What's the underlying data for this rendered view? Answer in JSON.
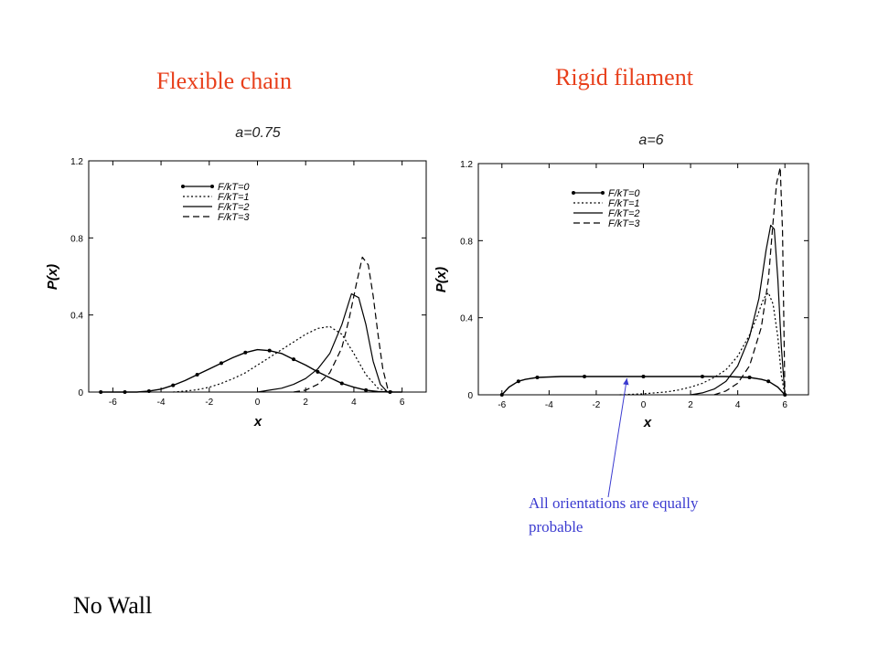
{
  "slide": {
    "left_title": "Flexible chain",
    "right_title": "Rigid filament",
    "footer": "No Wall",
    "callout": "All orientations are equally probable",
    "title_color": "#e8401c",
    "callout_color": "#3b3bd0"
  },
  "chart_data": [
    {
      "type": "line",
      "panel_label": "a=0.75",
      "xlabel": "x",
      "ylabel": "P(x)",
      "xlim": [
        -7,
        7
      ],
      "ylim": [
        0,
        1.2
      ],
      "xticks": [
        "-6",
        "-4",
        "-2",
        "0",
        "2",
        "4",
        "6"
      ],
      "yticks": [
        "0",
        "0.4",
        "0.8",
        "1.2"
      ],
      "legend_position": "top-left",
      "series": [
        {
          "name": "F/kT=0",
          "style": "solid-markers",
          "x": [
            -6.5,
            -6,
            -5.5,
            -5,
            -4.5,
            -4,
            -3.5,
            -3,
            -2.5,
            -2,
            -1.5,
            -1,
            -0.5,
            0,
            0.5,
            1,
            1.5,
            2,
            2.5,
            3,
            3.5,
            4,
            4.5,
            5,
            5.5,
            6
          ],
          "y": [
            0,
            0,
            0,
            0,
            0.005,
            0.015,
            0.035,
            0.06,
            0.09,
            0.12,
            0.15,
            0.18,
            0.205,
            0.22,
            0.215,
            0.2,
            0.17,
            0.14,
            0.105,
            0.075,
            0.045,
            0.025,
            0.01,
            0.003,
            0,
            0
          ]
        },
        {
          "name": "F/kT=1",
          "style": "dotted",
          "x": [
            -3.5,
            -3,
            -2.5,
            -2,
            -1.5,
            -1,
            -0.5,
            0,
            0.5,
            1,
            1.5,
            2,
            2.5,
            3,
            3.5,
            4,
            4.5,
            5,
            5.5
          ],
          "y": [
            0,
            0.005,
            0.012,
            0.025,
            0.045,
            0.07,
            0.1,
            0.14,
            0.18,
            0.22,
            0.26,
            0.3,
            0.33,
            0.34,
            0.3,
            0.2,
            0.09,
            0.02,
            0
          ]
        },
        {
          "name": "F/kT=2",
          "style": "solid",
          "x": [
            0,
            0.5,
            1,
            1.5,
            2,
            2.5,
            3,
            3.5,
            3.9,
            4.2,
            4.5,
            4.8,
            5.1,
            5.4
          ],
          "y": [
            0,
            0.01,
            0.02,
            0.04,
            0.07,
            0.12,
            0.2,
            0.35,
            0.51,
            0.49,
            0.35,
            0.16,
            0.04,
            0
          ]
        },
        {
          "name": "F/kT=3",
          "style": "dashed",
          "x": [
            1.5,
            2,
            2.5,
            3,
            3.5,
            3.8,
            4.1,
            4.35,
            4.6,
            4.8,
            5,
            5.2,
            5.4,
            5.6
          ],
          "y": [
            0,
            0.01,
            0.04,
            0.1,
            0.23,
            0.38,
            0.56,
            0.7,
            0.66,
            0.5,
            0.3,
            0.12,
            0.02,
            0
          ]
        }
      ]
    },
    {
      "type": "line",
      "panel_label": "a=6",
      "xlabel": "x",
      "ylabel": "P(x)",
      "xlim": [
        -7,
        7
      ],
      "ylim": [
        0,
        1.2
      ],
      "xticks": [
        "-6",
        "-4",
        "-2",
        "0",
        "2",
        "4",
        "6"
      ],
      "yticks": [
        "0",
        "0.4",
        "0.8",
        "1.2"
      ],
      "legend_position": "top-left",
      "series": [
        {
          "name": "F/kT=0",
          "style": "solid-markers",
          "x": [
            -6,
            -5.7,
            -5.3,
            -5,
            -4.5,
            -3.5,
            -2.5,
            -1.2,
            0,
            1.2,
            2.5,
            3.5,
            4.5,
            5,
            5.3,
            5.7,
            6
          ],
          "y": [
            0,
            0.04,
            0.07,
            0.08,
            0.09,
            0.095,
            0.095,
            0.095,
            0.095,
            0.095,
            0.095,
            0.095,
            0.09,
            0.08,
            0.07,
            0.04,
            0
          ]
        },
        {
          "name": "F/kT=1",
          "style": "dotted",
          "x": [
            -1,
            0,
            1,
            1.5,
            2,
            2.5,
            3,
            3.5,
            4,
            4.5,
            4.8,
            5.1,
            5.3,
            5.5,
            5.7,
            5.85,
            6
          ],
          "y": [
            0,
            0.005,
            0.015,
            0.025,
            0.04,
            0.06,
            0.09,
            0.13,
            0.2,
            0.31,
            0.4,
            0.5,
            0.53,
            0.47,
            0.3,
            0.1,
            0
          ]
        },
        {
          "name": "F/kT=2",
          "style": "solid",
          "x": [
            2,
            2.5,
            3,
            3.5,
            4,
            4.5,
            4.9,
            5.2,
            5.4,
            5.55,
            5.7,
            5.85,
            6
          ],
          "y": [
            0,
            0.01,
            0.03,
            0.07,
            0.15,
            0.3,
            0.5,
            0.75,
            0.88,
            0.86,
            0.6,
            0.25,
            0
          ]
        },
        {
          "name": "F/kT=3",
          "style": "dashed",
          "x": [
            3,
            3.5,
            4,
            4.5,
            5,
            5.3,
            5.5,
            5.65,
            5.8,
            5.9,
            6
          ],
          "y": [
            0,
            0.02,
            0.06,
            0.15,
            0.35,
            0.6,
            0.9,
            1.1,
            1.18,
            0.85,
            0
          ]
        }
      ]
    }
  ]
}
